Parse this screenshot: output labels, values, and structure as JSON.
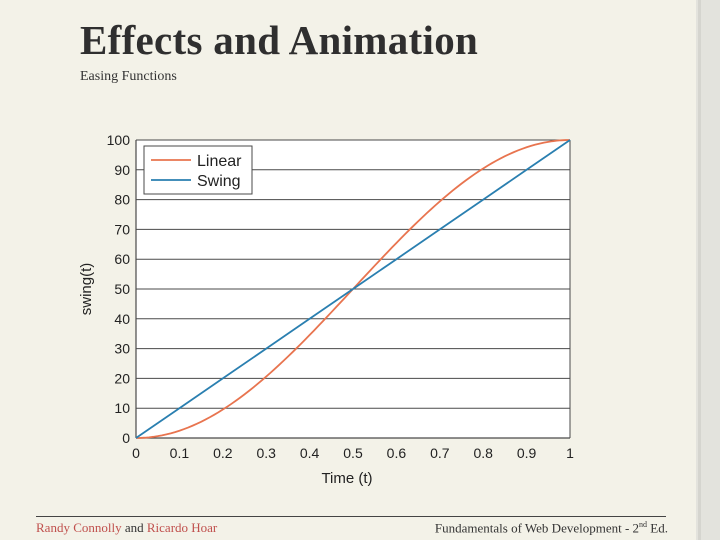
{
  "slide": {
    "title": "Effects and Animation",
    "subtitle": "Easing Functions",
    "footer": {
      "author1": "Randy Connolly",
      "and": "and",
      "author2": "Ricardo Hoar",
      "book": "Fundamentals of Web Development - 2",
      "edition_sup": "nd",
      "edition_tail": " Ed."
    }
  },
  "chart_data": {
    "type": "line",
    "xlabel": "Time (t)",
    "ylabel": "swing(t)",
    "xlim": [
      0,
      1
    ],
    "ylim": [
      0,
      100
    ],
    "x_ticks": [
      "0",
      "0.1",
      "0.2",
      "0.3",
      "0.4",
      "0.5",
      "0.6",
      "0.7",
      "0.8",
      "0.9",
      "1"
    ],
    "y_ticks": [
      "0",
      "10",
      "20",
      "30",
      "40",
      "50",
      "60",
      "70",
      "80",
      "90",
      "100"
    ],
    "grid": "horizontal",
    "legend_position": "top-left",
    "x": [
      0,
      0.1,
      0.2,
      0.3,
      0.4,
      0.5,
      0.6,
      0.7,
      0.8,
      0.9,
      1
    ],
    "series": [
      {
        "name": "Linear",
        "color": "#e8744f",
        "values": [
          0,
          2.4,
          9.5,
          20.6,
          34.5,
          50,
          65.5,
          79.4,
          90.5,
          97.6,
          100
        ]
      },
      {
        "name": "Swing",
        "color": "#2a7fb0",
        "values": [
          0,
          10,
          20,
          30,
          40,
          50,
          60,
          70,
          80,
          90,
          100
        ]
      }
    ]
  }
}
